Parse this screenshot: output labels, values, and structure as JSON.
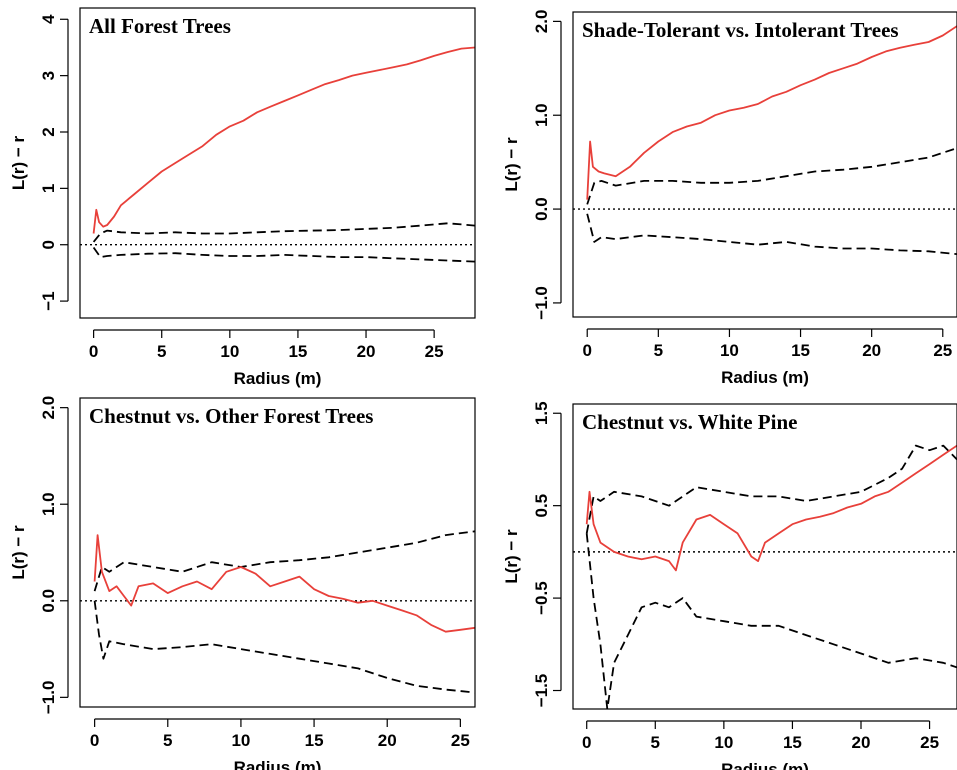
{
  "chart_data": [
    {
      "type": "line",
      "title": "All Forest Trees",
      "xlabel": "Radius (m)",
      "ylabel": "L(r) − r",
      "xlim": [
        -1,
        28
      ],
      "ylim": [
        -1.3,
        4.2
      ],
      "xticks": [
        0,
        5,
        10,
        15,
        20,
        25
      ],
      "yticks": [
        -1,
        0,
        1,
        2,
        3,
        4
      ],
      "xtick_labels": [
        "0",
        "5",
        "10",
        "15",
        "20",
        "25"
      ],
      "ytick_labels": [
        "−1",
        "0",
        "1",
        "2",
        "3",
        "4"
      ],
      "grid": false,
      "reference_y": 0,
      "series": [
        {
          "role": "observed",
          "color": "#e8403a",
          "style": "solid",
          "x": [
            0,
            0.2,
            0.4,
            0.7,
            1,
            1.5,
            2,
            3,
            4,
            5,
            6,
            7,
            8,
            9,
            10,
            11,
            12,
            13,
            14,
            15,
            16,
            17,
            18,
            19,
            20,
            21,
            22,
            23,
            24,
            25,
            26,
            27,
            28
          ],
          "y": [
            0.2,
            0.62,
            0.4,
            0.32,
            0.35,
            0.5,
            0.7,
            0.9,
            1.1,
            1.3,
            1.45,
            1.6,
            1.75,
            1.95,
            2.1,
            2.2,
            2.35,
            2.45,
            2.55,
            2.65,
            2.75,
            2.85,
            2.92,
            3.0,
            3.05,
            3.1,
            3.15,
            3.2,
            3.27,
            3.35,
            3.42,
            3.48,
            3.5
          ]
        },
        {
          "role": "upper-envelope",
          "color": "#000000",
          "style": "dashed",
          "x": [
            0,
            0.5,
            1,
            2,
            4,
            6,
            8,
            10,
            12,
            14,
            16,
            18,
            20,
            22,
            24,
            26,
            27,
            28
          ],
          "y": [
            0.05,
            0.2,
            0.25,
            0.22,
            0.2,
            0.22,
            0.2,
            0.2,
            0.22,
            0.24,
            0.25,
            0.26,
            0.28,
            0.3,
            0.34,
            0.38,
            0.36,
            0.34
          ]
        },
        {
          "role": "lower-envelope",
          "color": "#000000",
          "style": "dashed",
          "x": [
            0,
            0.5,
            1,
            2,
            4,
            6,
            8,
            10,
            12,
            14,
            16,
            18,
            20,
            22,
            24,
            26,
            28
          ],
          "y": [
            -0.05,
            -0.22,
            -0.2,
            -0.18,
            -0.16,
            -0.15,
            -0.18,
            -0.2,
            -0.2,
            -0.18,
            -0.2,
            -0.22,
            -0.22,
            -0.24,
            -0.26,
            -0.28,
            -0.3
          ]
        }
      ]
    },
    {
      "type": "line",
      "title": "Shade-Tolerant vs. Intolerant Trees",
      "xlabel": "Radius (m)",
      "ylabel": "L(r) − r",
      "xlim": [
        -1,
        26
      ],
      "ylim": [
        -1.15,
        2.1
      ],
      "xticks": [
        0,
        5,
        10,
        15,
        20,
        25
      ],
      "yticks": [
        -1,
        0,
        1,
        2
      ],
      "xtick_labels": [
        "0",
        "5",
        "10",
        "15",
        "20",
        "25"
      ],
      "ytick_labels": [
        "−1.0",
        "0.0",
        "1.0",
        "2.0"
      ],
      "grid": false,
      "reference_y": 0,
      "series": [
        {
          "role": "observed",
          "color": "#e8403a",
          "style": "solid",
          "x": [
            0,
            0.2,
            0.4,
            0.8,
            1.2,
            2,
            3,
            4,
            5,
            6,
            7,
            8,
            9,
            10,
            11,
            12,
            13,
            14,
            15,
            16,
            17,
            18,
            19,
            20,
            21,
            22,
            23,
            24,
            25,
            26
          ],
          "y": [
            0.1,
            0.72,
            0.45,
            0.4,
            0.38,
            0.35,
            0.45,
            0.6,
            0.72,
            0.82,
            0.88,
            0.92,
            1.0,
            1.05,
            1.08,
            1.12,
            1.2,
            1.25,
            1.32,
            1.38,
            1.45,
            1.5,
            1.55,
            1.62,
            1.68,
            1.72,
            1.75,
            1.78,
            1.85,
            1.95
          ]
        },
        {
          "role": "upper-envelope",
          "color": "#000000",
          "style": "dashed",
          "x": [
            0,
            0.5,
            1,
            2,
            4,
            6,
            8,
            10,
            12,
            14,
            16,
            18,
            20,
            22,
            24,
            26
          ],
          "y": [
            0.05,
            0.28,
            0.3,
            0.25,
            0.3,
            0.3,
            0.28,
            0.28,
            0.3,
            0.35,
            0.4,
            0.42,
            0.45,
            0.5,
            0.55,
            0.65
          ]
        },
        {
          "role": "lower-envelope",
          "color": "#000000",
          "style": "dashed",
          "x": [
            0,
            0.5,
            1,
            2,
            4,
            6,
            8,
            10,
            12,
            14,
            16,
            18,
            20,
            22,
            24,
            26
          ],
          "y": [
            -0.05,
            -0.35,
            -0.3,
            -0.32,
            -0.28,
            -0.3,
            -0.32,
            -0.35,
            -0.38,
            -0.35,
            -0.4,
            -0.42,
            -0.42,
            -0.44,
            -0.45,
            -0.48
          ]
        }
      ]
    },
    {
      "type": "line",
      "title": "Chestnut vs. Other Forest Trees",
      "xlabel": "Radius (m)",
      "ylabel": "L(r) − r",
      "xlim": [
        -1,
        26
      ],
      "ylim": [
        -1.1,
        2.1
      ],
      "xticks": [
        0,
        5,
        10,
        15,
        20,
        25
      ],
      "yticks": [
        -1,
        0,
        1,
        2
      ],
      "xtick_labels": [
        "0",
        "5",
        "10",
        "15",
        "20",
        "25"
      ],
      "ytick_labels": [
        "−1.0",
        "0.0",
        "1.0",
        "2.0"
      ],
      "grid": false,
      "reference_y": 0,
      "series": [
        {
          "role": "observed",
          "color": "#e8403a",
          "style": "solid",
          "x": [
            0,
            0.2,
            0.5,
            1,
            1.5,
            2,
            2.5,
            3,
            4,
            5,
            6,
            7,
            8,
            9,
            10,
            11,
            12,
            13,
            14,
            15,
            16,
            17,
            18,
            19,
            20,
            21,
            22,
            23,
            24,
            25,
            26
          ],
          "y": [
            0.2,
            0.68,
            0.3,
            0.1,
            0.15,
            0.05,
            -0.05,
            0.15,
            0.18,
            0.08,
            0.15,
            0.2,
            0.12,
            0.3,
            0.35,
            0.28,
            0.15,
            0.2,
            0.25,
            0.12,
            0.05,
            0.02,
            -0.02,
            0.0,
            -0.05,
            -0.1,
            -0.15,
            -0.25,
            -0.32,
            -0.3,
            -0.28
          ]
        },
        {
          "role": "upper-envelope",
          "color": "#000000",
          "style": "dashed",
          "x": [
            0,
            0.5,
            1,
            2,
            4,
            6,
            8,
            10,
            12,
            14,
            16,
            18,
            20,
            22,
            24,
            26
          ],
          "y": [
            0.1,
            0.35,
            0.3,
            0.4,
            0.35,
            0.3,
            0.4,
            0.35,
            0.4,
            0.42,
            0.45,
            0.5,
            0.55,
            0.6,
            0.68,
            0.72
          ]
        },
        {
          "role": "lower-envelope",
          "color": "#000000",
          "style": "dashed",
          "x": [
            0,
            0.3,
            0.6,
            1,
            2,
            4,
            6,
            8,
            10,
            12,
            14,
            16,
            18,
            20,
            22,
            24,
            26
          ],
          "y": [
            0.0,
            -0.35,
            -0.6,
            -0.42,
            -0.45,
            -0.5,
            -0.48,
            -0.45,
            -0.5,
            -0.55,
            -0.6,
            -0.65,
            -0.7,
            -0.8,
            -0.88,
            -0.92,
            -0.95
          ]
        }
      ]
    },
    {
      "type": "line",
      "title": "Chestnut vs. White Pine",
      "xlabel": "Radius (m)",
      "ylabel": "L(r) − r",
      "xlim": [
        -1,
        27
      ],
      "ylim": [
        -1.7,
        1.6
      ],
      "xticks": [
        0,
        5,
        10,
        15,
        20,
        25
      ],
      "yticks": [
        -1.5,
        -0.5,
        0.5,
        1.5
      ],
      "xtick_labels": [
        "0",
        "5",
        "10",
        "15",
        "20",
        "25"
      ],
      "ytick_labels": [
        "−1.5",
        "−0.5",
        "0.5",
        "1.5"
      ],
      "grid": false,
      "reference_y": 0,
      "series": [
        {
          "role": "observed",
          "color": "#e8403a",
          "style": "solid",
          "x": [
            0,
            0.2,
            0.5,
            1,
            2,
            3,
            4,
            5,
            6,
            6.5,
            7,
            8,
            9,
            10,
            11,
            12,
            12.5,
            13,
            14,
            15,
            16,
            17,
            18,
            19,
            20,
            21,
            22,
            23,
            24,
            25,
            26,
            27
          ],
          "y": [
            0.3,
            0.65,
            0.3,
            0.1,
            0.0,
            -0.05,
            -0.08,
            -0.05,
            -0.1,
            -0.2,
            0.1,
            0.35,
            0.4,
            0.3,
            0.2,
            -0.05,
            -0.1,
            0.1,
            0.2,
            0.3,
            0.35,
            0.38,
            0.42,
            0.48,
            0.52,
            0.6,
            0.65,
            0.75,
            0.85,
            0.95,
            1.05,
            1.15
          ]
        },
        {
          "role": "upper-envelope",
          "color": "#000000",
          "style": "dashed",
          "x": [
            0,
            0.5,
            1,
            2,
            4,
            6,
            8,
            10,
            12,
            14,
            16,
            18,
            20,
            22,
            23,
            24,
            25,
            26,
            27
          ],
          "y": [
            0.2,
            0.6,
            0.55,
            0.65,
            0.6,
            0.5,
            0.7,
            0.65,
            0.6,
            0.6,
            0.55,
            0.6,
            0.65,
            0.8,
            0.9,
            1.15,
            1.1,
            1.15,
            1.0
          ]
        },
        {
          "role": "lower-envelope",
          "color": "#000000",
          "style": "dashed",
          "x": [
            0,
            0.5,
            1,
            1.5,
            2,
            3,
            4,
            5,
            6,
            7,
            8,
            10,
            12,
            14,
            16,
            18,
            20,
            22,
            24,
            26,
            27
          ],
          "y": [
            0.2,
            -0.5,
            -1.0,
            -1.7,
            -1.2,
            -0.9,
            -0.6,
            -0.55,
            -0.6,
            -0.5,
            -0.7,
            -0.75,
            -0.8,
            -0.8,
            -0.9,
            -1.0,
            -1.1,
            -1.2,
            -1.15,
            -1.2,
            -1.25
          ]
        }
      ]
    }
  ]
}
